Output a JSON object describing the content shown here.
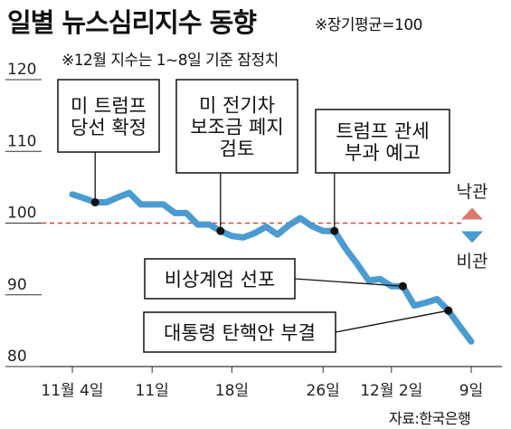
{
  "chart_data": {
    "type": "line",
    "title": "일별 뉴스심리지수 동향",
    "subtitle": "※장기평균=100",
    "note": "※12월 지수는 1~8일 기준 잠정치",
    "source": "자료:한국은행",
    "ylim": [
      80,
      120
    ],
    "yticks": [
      "120",
      "110",
      "100",
      "90",
      "80"
    ],
    "reference_line": 100,
    "xticks": [
      {
        "day": 0,
        "label": "11월 4일"
      },
      {
        "day": 7,
        "label": "11일"
      },
      {
        "day": 14,
        "label": "18일"
      },
      {
        "day": 22,
        "label": "26일"
      },
      {
        "day": 28,
        "label": "12월 2일"
      },
      {
        "day": 35,
        "label": "9일"
      }
    ],
    "series": [
      {
        "color": "#4a9bd1",
        "x": [
          0,
          1,
          2,
          3,
          4,
          5,
          6,
          7,
          8,
          9,
          10,
          11,
          12,
          13,
          14,
          15,
          16,
          17,
          18,
          19,
          20,
          21,
          22,
          23,
          24,
          25,
          26,
          27,
          28,
          29,
          30,
          31,
          32,
          33,
          34,
          35
        ],
        "y": [
          104,
          103.5,
          102.9,
          102.9,
          103.6,
          104.2,
          102.6,
          102.6,
          102.6,
          101.4,
          101.4,
          99.8,
          99.8,
          98.9,
          98.2,
          98.0,
          98.6,
          99.5,
          98.4,
          99.7,
          100.7,
          99.6,
          98.9,
          98.9,
          96.4,
          94.3,
          92.0,
          92.2,
          91.2,
          91.2,
          88.5,
          88.9,
          89.4,
          87.8,
          85.6,
          83.5
        ]
      }
    ],
    "annotations": [
      {
        "label": "미 트럼프\n당선 확정",
        "x": 2,
        "y": 102.9
      },
      {
        "label": "미 전기차\n보조금 폐지\n검토",
        "x": 13,
        "y": 98.9
      },
      {
        "label": "트럼프 관세\n부과 예고",
        "x": 23,
        "y": 98.9
      },
      {
        "label": "비상계엄 선포",
        "x": 29,
        "y": 91.2
      },
      {
        "label": "대통령 탄핵안 부결",
        "x": 33,
        "y": 87.8
      }
    ],
    "legend": [
      {
        "label": "낙관",
        "color": "#d97a6c",
        "direction": "up"
      },
      {
        "label": "비관",
        "color": "#4a9bd1",
        "direction": "down"
      }
    ],
    "reference_color": "#d9463a",
    "line_color": "#4a9bd1"
  }
}
